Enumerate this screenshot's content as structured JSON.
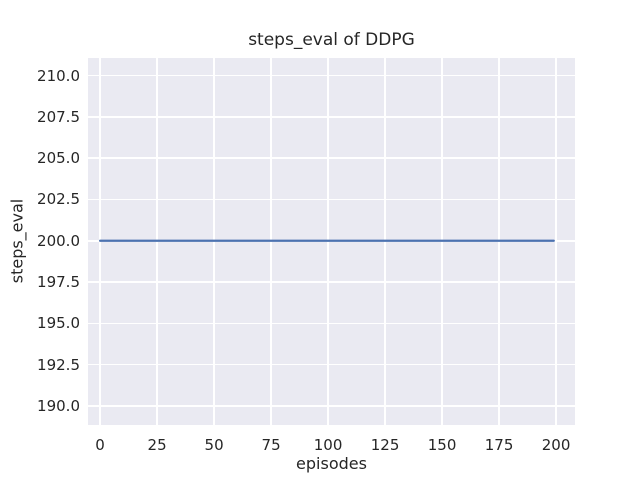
{
  "chart_data": {
    "type": "line",
    "title": "steps_eval of DDPG",
    "xlabel": "episodes",
    "ylabel": "steps_eval",
    "x_ticks": [
      0,
      25,
      50,
      75,
      100,
      125,
      150,
      175,
      200
    ],
    "x_tick_labels": [
      "0",
      "25",
      "50",
      "75",
      "100",
      "125",
      "150",
      "175",
      "200"
    ],
    "y_ticks": [
      190.0,
      192.5,
      195.0,
      197.5,
      200.0,
      202.5,
      205.0,
      207.5,
      210.0
    ],
    "y_tick_labels": [
      "190.0",
      "192.5",
      "195.0",
      "197.5",
      "200.0",
      "202.5",
      "205.0",
      "207.5",
      "210.0"
    ],
    "xlim": [
      -5.3,
      208.3
    ],
    "ylim": [
      188.85,
      211.06
    ],
    "grid": true,
    "legend": false,
    "series": [
      {
        "name": "DDPG",
        "x": [
          0,
          199
        ],
        "y": [
          200,
          200
        ],
        "color": "#4c72b0"
      }
    ],
    "colors": {
      "figure_background": "#ffffff",
      "plot_background": "#eaeaf2",
      "gridline": "#ffffff",
      "text": "#262626",
      "line": "#4c72b0"
    }
  }
}
